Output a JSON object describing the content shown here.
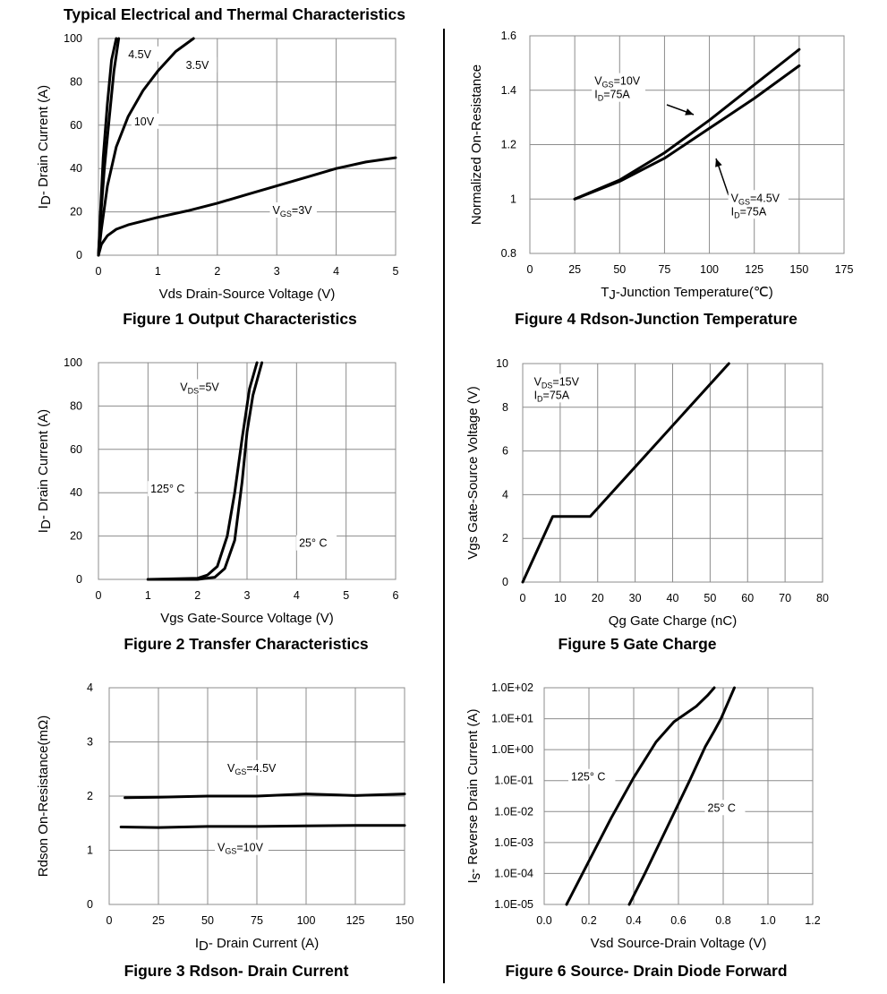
{
  "page_title": "Typical Electrical and Thermal Characteristics",
  "chart_data": [
    {
      "id": "fig1",
      "type": "line",
      "caption": "Figure 1 Output Characteristics",
      "xlabel": "Vds Drain-Source Voltage (V)",
      "ylabel": "I_D- Drain Current (A)",
      "xlim": [
        0,
        5
      ],
      "ylim": [
        0,
        100
      ],
      "xticks": [
        "0",
        "1",
        "2",
        "3",
        "4",
        "5"
      ],
      "yticks": [
        "0",
        "20",
        "40",
        "60",
        "80",
        "100"
      ],
      "grid": true,
      "series": [
        {
          "name": "V_GS=10V",
          "x": [
            0,
            0.03,
            0.08,
            0.15,
            0.22,
            0.3
          ],
          "y": [
            0,
            18,
            45,
            70,
            90,
            100
          ]
        },
        {
          "name": "4.5V",
          "x": [
            0,
            0.03,
            0.1,
            0.18,
            0.26,
            0.34
          ],
          "y": [
            0,
            15,
            40,
            63,
            85,
            100
          ]
        },
        {
          "name": "3.5V",
          "x": [
            0,
            0.05,
            0.15,
            0.3,
            0.5,
            0.75,
            1.0,
            1.3,
            1.6
          ],
          "y": [
            0,
            12,
            32,
            50,
            64,
            76,
            85,
            94,
            100
          ]
        },
        {
          "name": "V_GS=3V",
          "x": [
            0,
            0.05,
            0.15,
            0.3,
            0.5,
            1,
            1.5,
            2,
            2.5,
            3,
            3.5,
            4,
            4.5,
            5
          ],
          "y": [
            0,
            5,
            9,
            12,
            14,
            17.5,
            20.5,
            24,
            28,
            32,
            36,
            40,
            43,
            45
          ]
        }
      ],
      "annotations": [
        {
          "label": "4.5V",
          "at": [
            0.5,
            91
          ]
        },
        {
          "label": "3.5V",
          "at": [
            1.47,
            86
          ]
        },
        {
          "label": "10V",
          "at": [
            0.6,
            60
          ]
        },
        {
          "label": "V_GS=3V",
          "at": [
            2.93,
            19
          ]
        }
      ]
    },
    {
      "id": "fig2",
      "type": "line",
      "caption": "Figure 2 Transfer Characteristics",
      "xlabel": "Vgs Gate-Source Voltage (V)",
      "ylabel": "I_D- Drain Current (A)",
      "xlim": [
        0,
        6
      ],
      "ylim": [
        0,
        100
      ],
      "xticks": [
        "0",
        "1",
        "2",
        "3",
        "4",
        "5",
        "6"
      ],
      "yticks": [
        "0",
        "20",
        "40",
        "60",
        "80",
        "100"
      ],
      "grid": true,
      "series": [
        {
          "name": "125° C",
          "x": [
            1,
            2,
            2.2,
            2.4,
            2.6,
            2.75,
            2.9,
            3.05,
            3.2
          ],
          "y": [
            0,
            0.5,
            2,
            6,
            20,
            40,
            65,
            88,
            100
          ]
        },
        {
          "name": "25° C",
          "x": [
            1,
            2,
            2.35,
            2.55,
            2.75,
            2.9,
            3.0,
            3.12,
            3.3
          ],
          "y": [
            0,
            0,
            1,
            5,
            18,
            45,
            68,
            85,
            100
          ]
        }
      ],
      "annotations": [
        {
          "label": "V_DS=5V",
          "at": [
            1.65,
            87
          ]
        },
        {
          "label": "125° C",
          "at": [
            1.05,
            40
          ]
        },
        {
          "label": "25° C",
          "at": [
            4.05,
            15
          ]
        }
      ]
    },
    {
      "id": "fig3",
      "type": "line",
      "caption": "Figure 3 Rdson- Drain Current",
      "xlabel": "I_D- Drain Current (A)",
      "ylabel": "Rdson On-Resistance(mΩ)",
      "xlim": [
        0,
        150
      ],
      "ylim": [
        0,
        4
      ],
      "xticks": [
        "0",
        "25",
        "50",
        "75",
        "100",
        "125",
        "150"
      ],
      "yticks": [
        "0",
        "1",
        "2",
        "3",
        "4"
      ],
      "grid": true,
      "series": [
        {
          "name": "V_GS=4.5V",
          "x": [
            8,
            25,
            50,
            75,
            100,
            125,
            150
          ],
          "y": [
            1.97,
            1.98,
            2.0,
            2.0,
            2.04,
            2.01,
            2.04
          ]
        },
        {
          "name": "V_GS=10V",
          "x": [
            6,
            25,
            50,
            75,
            100,
            125,
            150
          ],
          "y": [
            1.43,
            1.42,
            1.44,
            1.44,
            1.45,
            1.46,
            1.46
          ]
        }
      ],
      "annotations": [
        {
          "label": "V_GS=4.5V",
          "at": [
            60,
            2.45
          ]
        },
        {
          "label": "V_GS=10V",
          "at": [
            55,
            0.98
          ]
        }
      ]
    },
    {
      "id": "fig4",
      "type": "line",
      "caption": "Figure 4 Rdson-Junction Temperature",
      "xlabel": "T_J-Junction Temperature(℃)",
      "ylabel": "Normalized On-Resistance",
      "xlim": [
        0,
        175
      ],
      "ylim": [
        0.8,
        1.6
      ],
      "xticks": [
        "0",
        "25",
        "50",
        "75",
        "100",
        "125",
        "150",
        "175"
      ],
      "yticks": [
        "0.8",
        "1",
        "1.2",
        "1.4",
        "1.6"
      ],
      "grid": true,
      "series": [
        {
          "name": "V_GS=10V I_D=75A",
          "x": [
            25,
            50,
            75,
            100,
            125,
            150
          ],
          "y": [
            1.0,
            1.07,
            1.17,
            1.29,
            1.42,
            1.55
          ]
        },
        {
          "name": "V_GS=4.5V I_D=75A",
          "x": [
            25,
            50,
            75,
            100,
            125,
            150
          ],
          "y": [
            1.0,
            1.065,
            1.15,
            1.26,
            1.37,
            1.49
          ]
        }
      ],
      "annotations": [
        {
          "label": "V_GS=10V",
          "line2": "I_D=75A",
          "at": [
            36,
            1.42
          ]
        },
        {
          "label": "V_GS=4.5V",
          "line2": "I_D=75A",
          "at": [
            112,
            0.99
          ]
        }
      ]
    },
    {
      "id": "fig5",
      "type": "line",
      "caption": "Figure 5 Gate Charge",
      "xlabel": "Qg Gate Charge (nC)",
      "ylabel": "Vgs Gate-Source Voltage (V)",
      "xlim": [
        0,
        80
      ],
      "ylim": [
        0,
        10
      ],
      "xticks": [
        "0",
        "10",
        "20",
        "30",
        "40",
        "50",
        "60",
        "70",
        "80"
      ],
      "yticks": [
        "0",
        "2",
        "4",
        "6",
        "8",
        "10"
      ],
      "grid": true,
      "series": [
        {
          "name": "V_GS",
          "x": [
            0,
            8,
            18,
            55
          ],
          "y": [
            0,
            3,
            3,
            10
          ]
        }
      ],
      "annotations": [
        {
          "label": "V_DS=15V",
          "line2": "I_D=75A",
          "at": [
            3,
            9.0
          ]
        }
      ]
    },
    {
      "id": "fig6",
      "type": "line",
      "caption": "Figure 6 Source- Drain Diode Forward",
      "xlabel": "Vsd Source-Drain Voltage (V)",
      "ylabel": "I_s- Reverse Drain Current (A)",
      "xlim": [
        0,
        1.2
      ],
      "ylim": [
        -5,
        2
      ],
      "y_scale": "log",
      "xticks": [
        "0.0",
        "0.2",
        "0.4",
        "0.6",
        "0.8",
        "1.0",
        "1.2"
      ],
      "yticks": [
        "1.0E-05",
        "1.0E-04",
        "1.0E-03",
        "1.0E-02",
        "1.0E-01",
        "1.0E+00",
        "1.0E+01",
        "1.0E+02"
      ],
      "grid": true,
      "series": [
        {
          "name": "125° C",
          "x": [
            0.1,
            0.2,
            0.3,
            0.4,
            0.5,
            0.58,
            0.62,
            0.68,
            0.73,
            0.76
          ],
          "y_log10": [
            -5,
            -3.6,
            -2.2,
            -0.9,
            0.25,
            0.9,
            1.1,
            1.4,
            1.75,
            2
          ]
        },
        {
          "name": "25° C",
          "x": [
            0.38,
            0.45,
            0.55,
            0.65,
            0.72,
            0.76,
            0.79,
            0.82,
            0.85
          ],
          "y_log10": [
            -5,
            -4.0,
            -2.5,
            -1.0,
            0.1,
            0.6,
            1.0,
            1.5,
            2
          ]
        }
      ],
      "annotations": [
        {
          "label": "125° C",
          "at": [
            0.12,
            -1.0
          ]
        },
        {
          "label": "25° C",
          "at": [
            0.73,
            -2.0
          ]
        }
      ]
    }
  ]
}
